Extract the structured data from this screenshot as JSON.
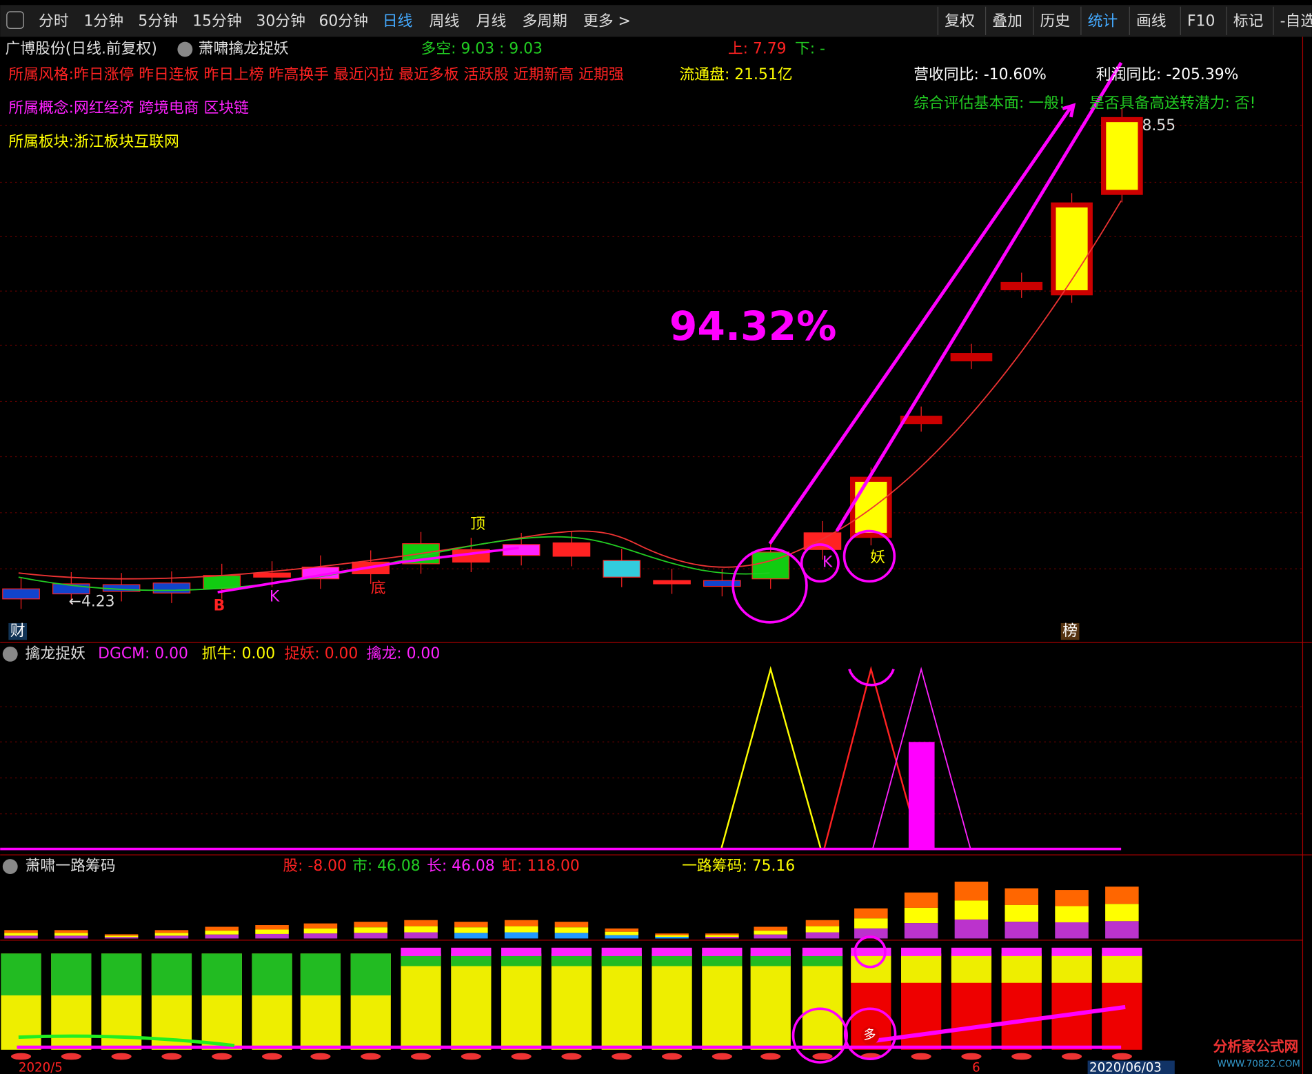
{
  "toolbar": {
    "left_tabs": [
      "分时",
      "1分钟",
      "5分钟",
      "15分钟",
      "30分钟",
      "60分钟",
      "日线",
      "周线",
      "月线",
      "多周期",
      "更多 >"
    ],
    "right_tabs": [
      "复权",
      "叠加",
      "历史",
      "统计",
      "画线",
      "F10",
      "标记",
      "-自选"
    ]
  },
  "header": {
    "stock": "广博股份(日线.前复权)",
    "formula": "萧啸擒龙捉妖",
    "long_short": "多空: 9.03 : 9.03",
    "up": "上: 7.79",
    "down": "下: -"
  },
  "info": {
    "style": "所属风格:昨日涨停 昨日连板 昨日上榜 昨高换手 最近闪拉 最近多板 活跃股 近期新高 近期强",
    "float": "流通盘: 21.51亿",
    "revenue": "营收同比: -10.60%",
    "profit": "利润同比: -205.39%",
    "evaluation": "综合评估基本面: 一般!",
    "bonus": "是否具备高送转潜力: 否!",
    "concept": "所属概念:网红经济 跨境电商 区块链",
    "sector": "所属板块:浙江板块互联网"
  },
  "main_chart": {
    "gain": "94.32%",
    "high": "8.55",
    "low": "←4.23",
    "top_mark": "顶",
    "bottom_mark": "底",
    "buy_mark": "B",
    "k_marks": [
      "K",
      "K"
    ],
    "demon_mark": "妖",
    "fin_mark": "财",
    "list_mark": "榜"
  },
  "panel2": {
    "title": "擒龙捉妖",
    "dgcm": "DGCM: 0.00",
    "bull": "抓牛: 0.00",
    "demon": "捉妖: 0.00",
    "dragon": "擒龙: 0.00"
  },
  "panel3": {
    "title": "萧啸一路筹码",
    "stock": "股: -8.00",
    "market": "市: 46.08",
    "long": "长: 46.08",
    "rainbow": "虹: 118.00",
    "chips": "一路筹码: 75.16",
    "duo": "多"
  },
  "date_axis": [
    "2020/5",
    "6",
    "2020/06/03"
  ],
  "watermark": {
    "name": "分析家公式网",
    "url": "WWW.70822.COM"
  }
}
